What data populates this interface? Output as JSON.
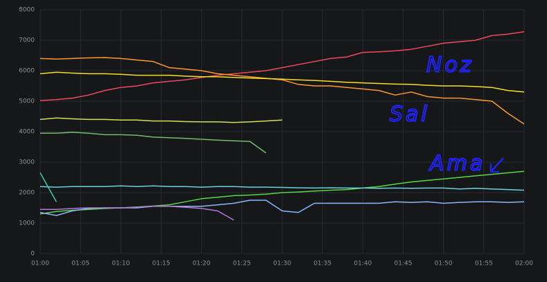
{
  "chart_data": {
    "type": "line",
    "x": [
      0,
      2,
      4,
      6,
      8,
      10,
      12,
      14,
      16,
      18,
      20,
      22,
      24,
      26,
      28,
      30,
      32,
      34,
      36,
      38,
      40,
      42,
      44,
      46,
      48,
      50,
      52,
      54,
      56,
      58,
      60
    ],
    "xlim": [
      0,
      60
    ],
    "xticks": [
      {
        "value": 0,
        "label": "01:00"
      },
      {
        "value": 5,
        "label": "01:05"
      },
      {
        "value": 10,
        "label": "01:10"
      },
      {
        "value": 15,
        "label": "01:15"
      },
      {
        "value": 20,
        "label": "01:20"
      },
      {
        "value": 25,
        "label": "01:25"
      },
      {
        "value": 30,
        "label": "01:30"
      },
      {
        "value": 35,
        "label": "01:35"
      },
      {
        "value": 40,
        "label": "01:40"
      },
      {
        "value": 45,
        "label": "01:45"
      },
      {
        "value": 50,
        "label": "01:50"
      },
      {
        "value": 55,
        "label": "01:55"
      },
      {
        "value": 60,
        "label": "02:00"
      }
    ],
    "ylim": [
      0,
      8000
    ],
    "yticks": [
      0,
      1000,
      2000,
      3000,
      4000,
      5000,
      6000,
      7000,
      8000
    ],
    "grid": true,
    "series": [
      {
        "color": "#f2495c",
        "values": [
          5020,
          5050,
          5100,
          5200,
          5350,
          5450,
          5500,
          5600,
          5650,
          5700,
          5780,
          5850,
          5900,
          5950,
          6000,
          6100,
          6200,
          6300,
          6400,
          6450,
          6600,
          6620,
          6650,
          6700,
          6800,
          6900,
          6950,
          7000,
          7150,
          7200,
          7280
        ]
      },
      {
        "color": "#ff9830",
        "values": [
          6400,
          6380,
          6400,
          6420,
          6430,
          6400,
          6350,
          6300,
          6100,
          6050,
          6000,
          5900,
          5850,
          5800,
          5750,
          5700,
          5550,
          5500,
          5500,
          5450,
          5400,
          5350,
          5200,
          5300,
          5150,
          5100,
          5100,
          5050,
          5000,
          4600,
          4250
        ]
      },
      {
        "color": "#fade2a",
        "values": [
          5900,
          5950,
          5920,
          5900,
          5900,
          5880,
          5850,
          5850,
          5850,
          5820,
          5800,
          5800,
          5780,
          5760,
          5740,
          5720,
          5700,
          5680,
          5650,
          5620,
          5600,
          5580,
          5560,
          5550,
          5520,
          5500,
          5500,
          5480,
          5450,
          5350,
          5300
        ]
      },
      {
        "color": "#d4e157",
        "values": [
          4400,
          4450,
          4420,
          4400,
          4400,
          4380,
          4380,
          4350,
          4350,
          4330,
          4320,
          4320,
          4300,
          4320,
          4350,
          4380,
          null,
          null,
          null,
          null,
          null,
          null,
          null,
          null,
          null,
          null,
          null,
          null,
          null,
          null,
          null
        ]
      },
      {
        "color": "#73bf69",
        "values": [
          3950,
          3950,
          3980,
          3950,
          3900,
          3900,
          3880,
          3820,
          3800,
          3780,
          3750,
          3720,
          3700,
          3680,
          3300,
          null,
          null,
          null,
          null,
          null,
          null,
          null,
          null,
          null,
          null,
          null,
          null,
          null,
          null,
          null,
          null
        ]
      },
      {
        "color": "#56d945",
        "values": [
          1300,
          1380,
          1420,
          1450,
          1480,
          1500,
          1530,
          1560,
          1600,
          1700,
          1800,
          1850,
          1900,
          1920,
          1950,
          2000,
          2020,
          2050,
          2080,
          2100,
          2150,
          2200,
          2280,
          2350,
          2400,
          2450,
          2500,
          2550,
          2600,
          2650,
          2700
        ]
      },
      {
        "color": "#6ed0e0",
        "values": [
          2200,
          2180,
          2200,
          2200,
          2200,
          2220,
          2200,
          2220,
          2200,
          2200,
          2180,
          2200,
          2200,
          2180,
          2180,
          2170,
          2160,
          2150,
          2160,
          2150,
          2150,
          2140,
          2150,
          2140,
          2150,
          2150,
          2120,
          2140,
          2120,
          2100,
          2080
        ]
      },
      {
        "color": "#8ab8ff",
        "values": [
          1350,
          1250,
          1400,
          1480,
          1500,
          1500,
          1500,
          1550,
          1550,
          1550,
          1550,
          1600,
          1650,
          1750,
          1750,
          1400,
          1350,
          1650,
          1650,
          1650,
          1650,
          1650,
          1700,
          1680,
          1700,
          1650,
          1680,
          1700,
          1700,
          1680,
          1700
        ]
      },
      {
        "color": "#b877d9",
        "values": [
          1450,
          1450,
          1480,
          1500,
          1500,
          1500,
          1520,
          1550,
          1550,
          1520,
          1480,
          1400,
          1100,
          null,
          null,
          null,
          null,
          null,
          null,
          null,
          null,
          null,
          null,
          null,
          null,
          null,
          null,
          null,
          null,
          null,
          null
        ]
      },
      {
        "color": "#37d0a0",
        "values": [
          2650,
          1700,
          null,
          null,
          null,
          null,
          null,
          null,
          null,
          null,
          null,
          null,
          null,
          null,
          null,
          null,
          null,
          null,
          null,
          null,
          null,
          null,
          null,
          null,
          null,
          null,
          null,
          null,
          null,
          null,
          null
        ]
      }
    ],
    "annotations": [
      "Noz",
      "Sal",
      "Ama"
    ]
  }
}
